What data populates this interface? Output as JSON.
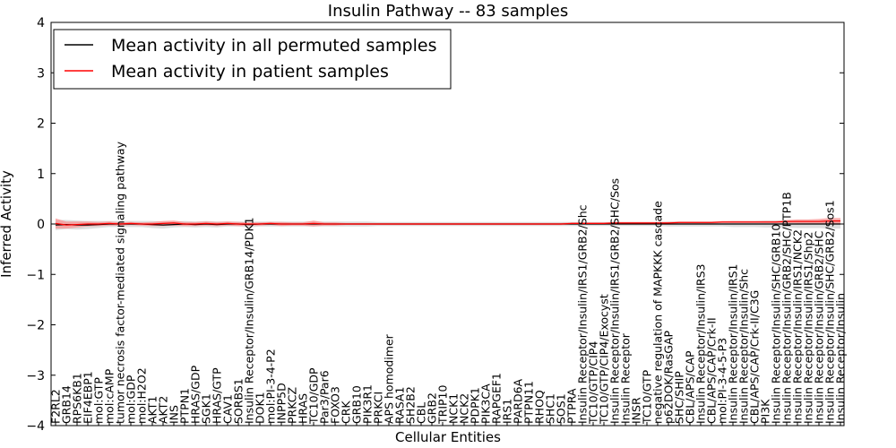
{
  "chart_data": {
    "type": "line",
    "title": "Insulin Pathway -- 83 samples",
    "xlabel": "Cellular Entities",
    "ylabel": "Inferred Activity",
    "ylim": [
      -4,
      4
    ],
    "yticks": [
      "4",
      "3",
      "2",
      "1",
      "0",
      "−1",
      "−2",
      "−3",
      "−4"
    ],
    "legend_position": "top-left",
    "colors": {
      "permuted": "#000000",
      "patient": "#ff0000",
      "permuted_band": "#c8c8c8",
      "patient_band": "#ff7f7f"
    },
    "categories": [
      "F2RL2",
      "GRB14",
      "RPS6KB1",
      "EIF4EBP1",
      "mol:GTP",
      "mol:cAMP",
      "tumor necrosis factor-mediated signaling pathway",
      "mol:GDP",
      "mol:H2O2",
      "AKT1",
      "AKT2",
      "INS",
      "PTPN1",
      "HRAS/GDP",
      "SGK1",
      "HRAS/GTP",
      "CAV1",
      "SORBS1",
      "Insulin Receptor/Insulin/GRB14/PDK1",
      "DOK1",
      "mol:PI-3-4-P2",
      "INPP5D",
      "PRKCZ",
      "HRAS",
      "TC10/GDP",
      "Par3/Par6",
      "FOXO3",
      "CRK",
      "GRB10",
      "PIK3R1",
      "PRKCI",
      "APS homodimer",
      "RASA1",
      "SH2B2",
      "CBL",
      "GRB2",
      "TRIP10",
      "NCK1",
      "NCK2",
      "PDPK1",
      "PIK3CA",
      "RAPGEF1",
      "IRS1",
      "PARD6A",
      "PTPN11",
      "RHOQ",
      "SHC1",
      "SOS1",
      "PTPRA",
      "Insulin Receptor/Insulin/IRS1/GRB2/Shc",
      "TC10/GTP/CIP4",
      "TC10/GTP/CIP4/Exocyst",
      "Insulin Receptor/Insulin/IRS1/GRB2/SHC/Sos",
      "Insulin Receptor",
      "INSR",
      "TC10/GTP",
      "negative regulation of MAPKKK cascade",
      "p62DOK/RasGAP",
      "SHC/SHIP",
      "CBL/APS/CAP",
      "Insulin Receptor/Insulin/IRS3",
      "CBL/APS/CAP/Crk-II",
      "mol:PI-3-4-5-P3",
      "Insulin Receptor/Insulin/IRS1",
      "Insulin Receptor/Insulin/Shc",
      "CBL/APS/CAP/Crk-II/C3G",
      "PI3K",
      "Insulin Receptor/Insulin/SHC/GRB10",
      "Insulin Receptor/Insulin/GRB2/SHC/PTP1B",
      "Insulin Receptor/Insulin/IRS1/NCK2",
      "Insulin Receptor/Insulin/IRS1/Shp2",
      "Insulin Receptor/Insulin/GRB2/SHC",
      "Insulin Receptor/Insulin/SHC/GRB2/Sos1",
      "Insulin Receptor/Insulin"
    ],
    "series": [
      {
        "name": "Mean activity in all permuted samples",
        "values": [
          -0.02,
          -0.01,
          -0.02,
          -0.02,
          -0.01,
          0.0,
          0.0,
          0.0,
          0.0,
          -0.01,
          -0.02,
          -0.01,
          0.0,
          -0.01,
          0.0,
          -0.01,
          0.0,
          0.0,
          -0.01,
          0.0,
          0.0,
          0.0,
          0.0,
          0.0,
          0.0,
          0.0,
          0.0,
          0.0,
          0.0,
          0.0,
          0.0,
          0.0,
          0.0,
          0.0,
          0.0,
          0.0,
          0.0,
          0.0,
          0.0,
          0.0,
          0.0,
          0.0,
          0.0,
          0.0,
          0.0,
          0.0,
          0.0,
          0.0,
          0.0,
          0.0,
          0.0,
          0.0,
          0.0,
          0.0,
          0.0,
          0.0,
          0.0,
          0.0,
          0.0,
          0.0,
          0.0,
          0.0,
          0.0,
          0.0,
          0.0,
          0.0,
          0.0,
          0.0,
          0.0,
          0.0,
          0.0,
          0.0,
          0.0,
          0.0
        ],
        "band": [
          0.1,
          0.09,
          0.09,
          0.08,
          0.07,
          0.06,
          0.06,
          0.06,
          0.06,
          0.07,
          0.07,
          0.06,
          0.06,
          0.06,
          0.06,
          0.06,
          0.05,
          0.05,
          0.06,
          0.05,
          0.05,
          0.05,
          0.05,
          0.05,
          0.05,
          0.05,
          0.05,
          0.05,
          0.05,
          0.05,
          0.04,
          0.04,
          0.04,
          0.04,
          0.04,
          0.04,
          0.04,
          0.04,
          0.04,
          0.04,
          0.04,
          0.04,
          0.04,
          0.04,
          0.04,
          0.04,
          0.04,
          0.04,
          0.04,
          0.04,
          0.04,
          0.04,
          0.04,
          0.04,
          0.04,
          0.04,
          0.04,
          0.05,
          0.05,
          0.05,
          0.05,
          0.05,
          0.05,
          0.06,
          0.06,
          0.06,
          0.07,
          0.07,
          0.07,
          0.08,
          0.08,
          0.08,
          0.09,
          0.09
        ]
      },
      {
        "name": "Mean activity in patient samples",
        "values": [
          0.01,
          -0.02,
          -0.01,
          0.0,
          0.0,
          0.01,
          0.0,
          0.01,
          0.0,
          0.0,
          0.01,
          0.02,
          0.0,
          0.0,
          0.01,
          0.0,
          0.01,
          0.0,
          0.0,
          0.0,
          0.01,
          0.0,
          0.0,
          0.0,
          0.01,
          0.0,
          0.0,
          0.0,
          0.0,
          0.0,
          0.0,
          0.0,
          0.0,
          0.0,
          0.0,
          0.0,
          0.0,
          0.0,
          0.0,
          0.0,
          0.0,
          0.0,
          0.0,
          0.0,
          0.0,
          0.0,
          0.0,
          0.0,
          0.01,
          0.01,
          0.01,
          0.01,
          0.02,
          0.02,
          0.02,
          0.02,
          0.02,
          0.02,
          0.03,
          0.03,
          0.03,
          0.03,
          0.04,
          0.04,
          0.04,
          0.04,
          0.04,
          0.04,
          0.05,
          0.05,
          0.05,
          0.05,
          0.06,
          0.06
        ],
        "band": [
          0.1,
          0.07,
          0.06,
          0.05,
          0.04,
          0.04,
          0.03,
          0.03,
          0.03,
          0.04,
          0.05,
          0.05,
          0.04,
          0.04,
          0.04,
          0.04,
          0.04,
          0.04,
          0.03,
          0.03,
          0.03,
          0.04,
          0.03,
          0.03,
          0.06,
          0.03,
          0.03,
          0.02,
          0.02,
          0.02,
          0.02,
          0.02,
          0.02,
          0.02,
          0.02,
          0.02,
          0.02,
          0.02,
          0.02,
          0.02,
          0.02,
          0.02,
          0.02,
          0.02,
          0.02,
          0.02,
          0.02,
          0.02,
          0.02,
          0.02,
          0.02,
          0.02,
          0.02,
          0.02,
          0.02,
          0.02,
          0.02,
          0.02,
          0.02,
          0.02,
          0.02,
          0.02,
          0.02,
          0.02,
          0.02,
          0.02,
          0.02,
          0.02,
          0.03,
          0.04,
          0.04,
          0.05,
          0.06,
          0.06
        ]
      }
    ]
  }
}
